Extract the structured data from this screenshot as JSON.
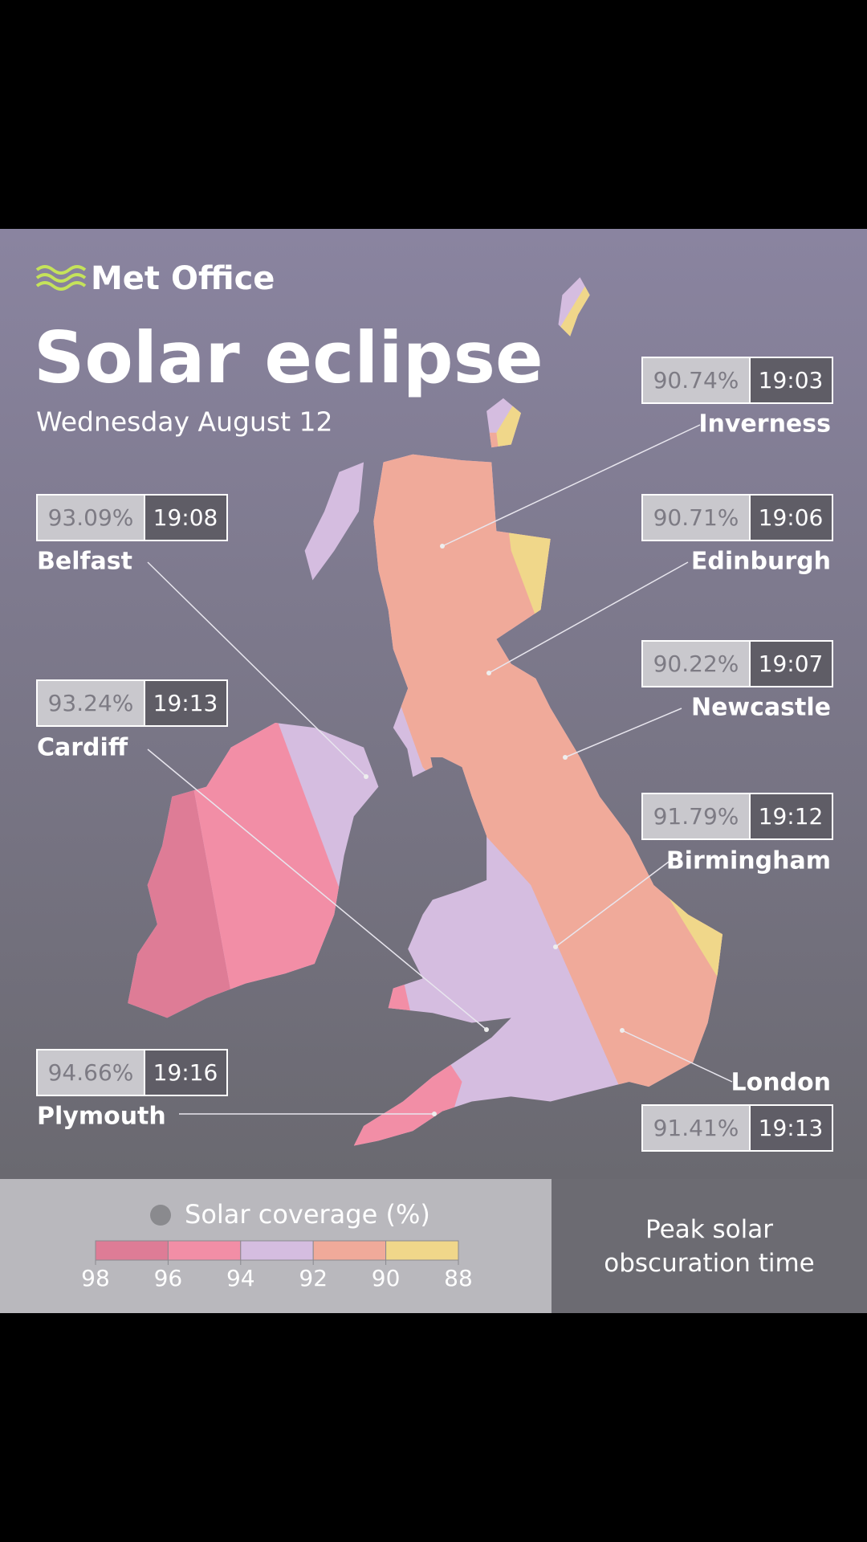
{
  "header": {
    "brand": "Met Office",
    "title": "Solar eclipse",
    "subtitle": "Wednesday August 12"
  },
  "cities": [
    {
      "name": "Inverness",
      "coverage": "90.74%",
      "time": "19:03"
    },
    {
      "name": "Edinburgh",
      "coverage": "90.71%",
      "time": "19:06"
    },
    {
      "name": "Newcastle",
      "coverage": "90.22%",
      "time": "19:07"
    },
    {
      "name": "Birmingham",
      "coverage": "91.79%",
      "time": "19:12"
    },
    {
      "name": "London",
      "coverage": "91.41%",
      "time": "19:13"
    },
    {
      "name": "Belfast",
      "coverage": "93.09%",
      "time": "19:08"
    },
    {
      "name": "Cardiff",
      "coverage": "93.24%",
      "time": "19:13"
    },
    {
      "name": "Plymouth",
      "coverage": "94.66%",
      "time": "19:16"
    }
  ],
  "legend": {
    "title": "Solar coverage (%)",
    "ticks": [
      98,
      96,
      94,
      92,
      90,
      88
    ],
    "colors": [
      "#de7c96",
      "#f28ea6",
      "#d5bde0",
      "#f0aa9a",
      "#f0d78a"
    ]
  },
  "note": "Peak solar obscuration time"
}
